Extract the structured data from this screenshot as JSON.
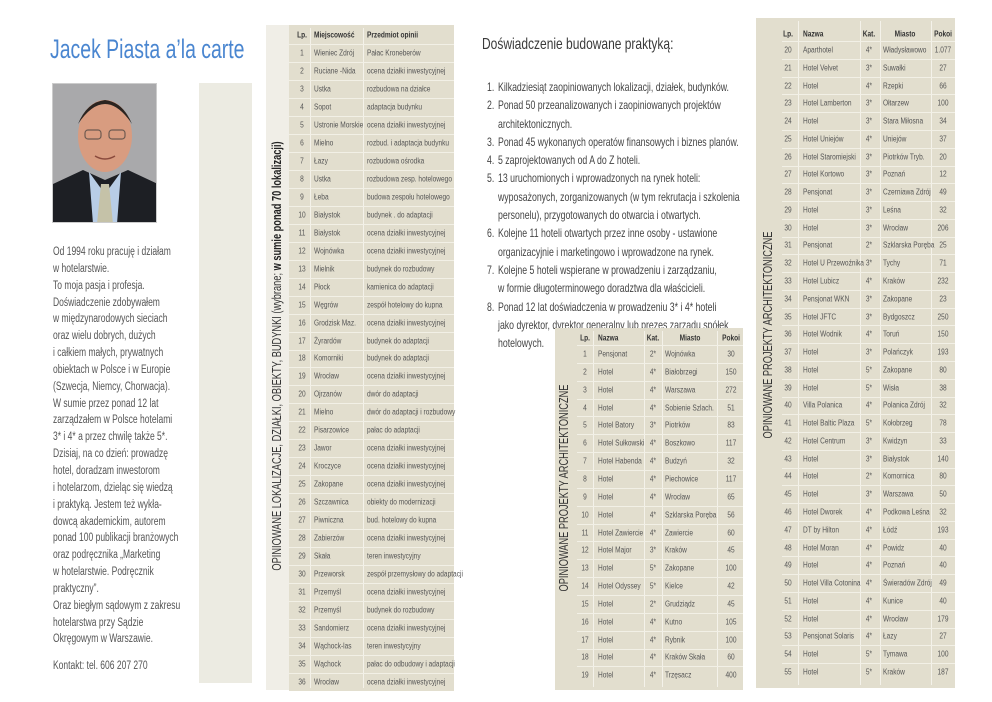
{
  "colors": {
    "title": "#4a86d0",
    "panel": "#e2dece",
    "strip": "#ecebe2"
  },
  "left": {
    "title": "Jacek Piasta a’la carte",
    "photo_alt": "portrait",
    "bio_lines": [
      "Od 1994 roku pracuję i działam",
      "w hotelarstwie.",
      "To moja pasja i profesja.",
      "Doświadczenie zdobywałem",
      "w międzynarodowych sieciach",
      "oraz wielu dobrych, dużych",
      "i całkiem małych, prywatnych",
      "obiektach w Polsce i w Europie",
      "(Szwecja, Niemcy, Chorwacja).",
      "W sumie przez ponad 12 lat",
      "zarządzałem w Polsce hotelami",
      "3* i 4* a przez chwilę także 5*.",
      "Dzisiaj, na co dzień: prowadzę",
      "hotel, doradzam inwestorom",
      "i hotelarzom, dzieląc się  wiedzą",
      "i praktyką. Jestem też wykła-",
      "dowcą akademickim, autorem",
      "ponad 100 publikacji branżowych",
      "oraz podręcznika „Marketing",
      "w hotelarstwie. Podręcznik",
      "praktyczny”.",
      "Oraz biegłym sądowym z zakresu",
      "hotelarstwa przy Sądzie",
      "Okręgowym w Warszawie."
    ],
    "contact": "Kontakt: tel. 606 207 270"
  },
  "locations": {
    "label_regular": "OPINIOWANE LOKALIZACJE, DZIAŁKI, OBIEKTY, BUDYNKI (wybrane; ",
    "label_bold": "w sumie ponad 70 lokalizacji)",
    "headers": [
      "Lp.",
      "Miejscowość",
      "Przedmiot opinii"
    ],
    "rows": [
      [
        "1",
        "Wieniec Zdrój",
        "Pałac Kroneberów"
      ],
      [
        "2",
        "Ruciane -Nida",
        "ocena działki inwestycyjnej"
      ],
      [
        "3",
        "Ustka",
        "rozbudowa na działce"
      ],
      [
        "4",
        "Sopot",
        "adaptacja budynku"
      ],
      [
        "5",
        "Ustronie Morskie",
        "ocena działki inwestycyjnej"
      ],
      [
        "6",
        "Mielno",
        "rozbud. i adaptacja  budynku"
      ],
      [
        "7",
        "Łazy",
        "rozbudowa ośrodka"
      ],
      [
        "8",
        "Ustka",
        "rozbudowa zesp. hotelowego"
      ],
      [
        "9",
        "Łeba",
        "budowa zespołu hotelowego"
      ],
      [
        "10",
        "Białystok",
        "budynek . do adaptacji"
      ],
      [
        "11",
        "Białystok",
        "ocena działki inwestycyjnej"
      ],
      [
        "12",
        "Wojnówka",
        "ocena działki inwestycyjnej"
      ],
      [
        "13",
        "Mielnik",
        "budynek do rozbudowy"
      ],
      [
        "14",
        "Płock",
        "kamienica do adaptacji"
      ],
      [
        "15",
        "Węgrów",
        "zespół hotelowy do kupna"
      ],
      [
        "16",
        "Grodzisk Maz.",
        "ocena działki inwestycyjnej"
      ],
      [
        "17",
        "Żyrardów",
        "budynek do adaptacji"
      ],
      [
        "18",
        "Komorniki",
        "budynek do adaptacji"
      ],
      [
        "19",
        "Wrocław",
        "ocena działki inwestycyjnej"
      ],
      [
        "20",
        "Ojrzanów",
        "dwór do adaptacji"
      ],
      [
        "21",
        "Mielno",
        "dwór do adaptacji i rozbudowy"
      ],
      [
        "22",
        "Pisarzowice",
        "pałac do adaptacji"
      ],
      [
        "23",
        "Jawor",
        "ocena działki inwestycyjnej"
      ],
      [
        "24",
        "Kroczyce",
        "ocena działki inwestycyjnej"
      ],
      [
        "25",
        "Zakopane",
        "ocena działki inwestycyjnej"
      ],
      [
        "26",
        "Szczawnica",
        "obiekty do modernizacji"
      ],
      [
        "27",
        "Piwniczna",
        "bud. hotelowy do kupna"
      ],
      [
        "28",
        "Zabierzów",
        "ocena działki inwestycyjnej"
      ],
      [
        "29",
        "Skała",
        "teren inwestycyjny"
      ],
      [
        "30",
        "Przeworsk",
        "zespół przemysłowy do adaptacji"
      ],
      [
        "31",
        "Przemyśl",
        "ocena działki inwestycyjnej"
      ],
      [
        "32",
        "Przemyśl",
        "budynek do rozbudowy"
      ],
      [
        "33",
        "Sandomierz",
        "ocena działki inwestycyjnej"
      ],
      [
        "34",
        "Wąchock-las",
        "teren inwestycyjny"
      ],
      [
        "35",
        "Wąchock",
        "pałac do odbudowy i adaptacji"
      ],
      [
        "36",
        "Wrocław",
        "ocena działki inwestycyjnej"
      ]
    ]
  },
  "experience": {
    "heading": "Doświadczenie budowane praktyką:",
    "items": [
      {
        "num": "1.",
        "lines": [
          "Kilkadziesiąt zaopiniowanych lokalizacji, działek, budynków."
        ]
      },
      {
        "num": "2.",
        "lines": [
          "Ponad 50 przeanalizowanych i zaopiniowanych projektów",
          "architektonicznych."
        ]
      },
      {
        "num": "3.",
        "lines": [
          "Ponad 45 wykonanych operatów finansowych i biznes planów."
        ]
      },
      {
        "num": "4.",
        "lines": [
          "5 zaprojektowanych od A do Z hoteli."
        ]
      },
      {
        "num": "5.",
        "lines": [
          "13 uruchomionych i wprowadzonych na rynek hoteli:",
          "wyposażonych, zorganizowanych (w tym rekrutacja i szkolenia",
          "personelu), przygotowanych do otwarcia i otwartych."
        ]
      },
      {
        "num": "6.",
        "lines": [
          "Kolejne 11 hoteli otwartych przez inne osoby - ustawione",
          "organizacyjnie i marketingowo i wprowadzone na rynek."
        ]
      },
      {
        "num": "7.",
        "lines": [
          "Kolejne 5 hoteli wspierane w prowadzeniu i zarządzaniu,",
          "w formie długoterminowego doradztwa dla właścicieli."
        ]
      },
      {
        "num": "8.",
        "lines": [
          "Ponad 12 lat doświadczenia w prowadzeniu 3* i 4* hoteli",
          "jako dyrektor, dyrektor generalny lub prezes zarządu spółek",
          "hotelowych."
        ]
      }
    ]
  },
  "projects_a": {
    "label": "OPINIOWANE PROJEKTY ARCHITEKTONICZNE",
    "headers": [
      "Lp.",
      "Nazwa",
      "Kat.",
      "Miasto",
      "Pokoi"
    ],
    "rows": [
      [
        "1",
        "Pensjonat",
        "2*",
        "Wojnówka",
        "30"
      ],
      [
        "2",
        "Hotel",
        "4*",
        "Białobrzegi",
        "150"
      ],
      [
        "3",
        "Hotel",
        "4*",
        "Warszawa",
        "272"
      ],
      [
        "4",
        "Hotel",
        "4*",
        "Sobienie Szlach.",
        "51"
      ],
      [
        "5",
        "Hotel Batory",
        "3*",
        "Piotrków",
        "83"
      ],
      [
        "6",
        "Hotel Sułkowski",
        "4*",
        "Boszkowo",
        "117"
      ],
      [
        "7",
        "Hotel Habenda",
        "4*",
        "Budzyń",
        "32"
      ],
      [
        "8",
        "Hotel",
        "4*",
        "Piechowice",
        "117"
      ],
      [
        "9",
        "Hotel",
        "4*",
        "Wrocław",
        "65"
      ],
      [
        "10",
        "Hotel",
        "4*",
        "Szklarska Poręba",
        "56"
      ],
      [
        "11",
        "Hotel Zawiercie",
        "4*",
        "Zawiercie",
        "60"
      ],
      [
        "12",
        "Hotel Major",
        "3*",
        "Kraków",
        "45"
      ],
      [
        "13",
        "Hotel",
        "5*",
        "Zakopane",
        "100"
      ],
      [
        "14",
        "Hotel Odyssey",
        "5*",
        "Kielce",
        "42"
      ],
      [
        "15",
        "Hotel",
        "2*",
        "Grudziądz",
        "45"
      ],
      [
        "16",
        "Hotel",
        "4*",
        "Kutno",
        "105"
      ],
      [
        "17",
        "Hotel",
        "4*",
        "Rybnik",
        "100"
      ],
      [
        "18",
        "Hotel",
        "4*",
        "Kraków Skała",
        "60"
      ],
      [
        "19",
        "Hotel",
        "4*",
        "Trzęsacz",
        "400"
      ]
    ]
  },
  "projects_b": {
    "label": "OPINIOWANE PROJEKTY ARCHITEKTONICZNE",
    "headers": [
      "Lp.",
      "Nazwa",
      "Kat.",
      "Miasto",
      "Pokoi"
    ],
    "rows": [
      [
        "20",
        "Aparthotel",
        "4*",
        "Władysławowo",
        "1.077"
      ],
      [
        "21",
        "Hotel Velvet",
        "3*",
        "Suwałki",
        "27"
      ],
      [
        "22",
        "Hotel",
        "4*",
        "Rzepki",
        "66"
      ],
      [
        "23",
        "Hotel Lamberton",
        "3*",
        "Ołtarzew",
        "100"
      ],
      [
        "24",
        "Hotel",
        "3*",
        "Stara Miłosna",
        "34"
      ],
      [
        "25",
        "Hotel Uniejów",
        "4*",
        "Uniejów",
        "37"
      ],
      [
        "26",
        "Hotel Staromiejski",
        "3*",
        "Piotrków Tryb.",
        "20"
      ],
      [
        "27",
        "Hotel Kortowo",
        "3*",
        "Poznań",
        "12"
      ],
      [
        "28",
        "Pensjonat",
        "3*",
        "Czerniawa Zdrój",
        "49"
      ],
      [
        "29",
        "Hotel",
        "3*",
        "Leśna",
        "32"
      ],
      [
        "30",
        "Hotel",
        "3*",
        "Wrocław",
        "206"
      ],
      [
        "31",
        "Pensjonat",
        "2*",
        "Szklarska Poręba",
        "25"
      ],
      [
        "32",
        "Hotel U Przewoźnika",
        "3*",
        "Tychy",
        "71"
      ],
      [
        "33",
        "Hotel Lubicz",
        "4*",
        "Kraków",
        "232"
      ],
      [
        "34",
        "Pensjonat WKN",
        "3*",
        "Zakopane",
        "23"
      ],
      [
        "35",
        "Hotel JFTC",
        "3*",
        "Bydgoszcz",
        "250"
      ],
      [
        "36",
        "Hotel Wodnik",
        "4*",
        "Toruń",
        "150"
      ],
      [
        "37",
        "Hotel",
        "3*",
        "Polańczyk",
        "193"
      ],
      [
        "38",
        "Hotel",
        "5*",
        "Zakopane",
        "80"
      ],
      [
        "39",
        "Hotel",
        "5*",
        "Wisła",
        "38"
      ],
      [
        "40",
        "Villa Polanica",
        "4*",
        "Polanica Zdrój",
        "32"
      ],
      [
        "41",
        "Hotel Baltic Plaza",
        "5*",
        "Kołobrzeg",
        "78"
      ],
      [
        "42",
        "Hotel Centrum",
        "3*",
        "Kwidzyn",
        "33"
      ],
      [
        "43",
        "Hotel",
        "3*",
        "Białystok",
        "140"
      ],
      [
        "44",
        "Hotel",
        "2*",
        "Komornica",
        "80"
      ],
      [
        "45",
        "Hotel",
        "3*",
        "Warszawa",
        "50"
      ],
      [
        "46",
        "Hotel Dworek",
        "4*",
        "Podkowa Leśna",
        "32"
      ],
      [
        "47",
        "DT  by Hilton",
        "4*",
        "Łódź",
        "193"
      ],
      [
        "48",
        "Hotel Moran",
        "4*",
        "Powidz",
        "40"
      ],
      [
        "49",
        "Hotel",
        "4*",
        "Poznań",
        "40"
      ],
      [
        "50",
        "Hotel Villa Cotonina",
        "4*",
        "Świeradów Zdrój",
        "49"
      ],
      [
        "51",
        "Hotel",
        "4*",
        "Kunice",
        "40"
      ],
      [
        "52",
        "Hotel",
        "4*",
        "Wrocław",
        "179"
      ],
      [
        "53",
        "Pensjonat Solaris",
        "4*",
        "Łazy",
        "27"
      ],
      [
        "54",
        "Hotel",
        "5*",
        "Tymawa",
        "100"
      ],
      [
        "55",
        "Hotel",
        "5*",
        "Kraków",
        "187"
      ]
    ]
  }
}
